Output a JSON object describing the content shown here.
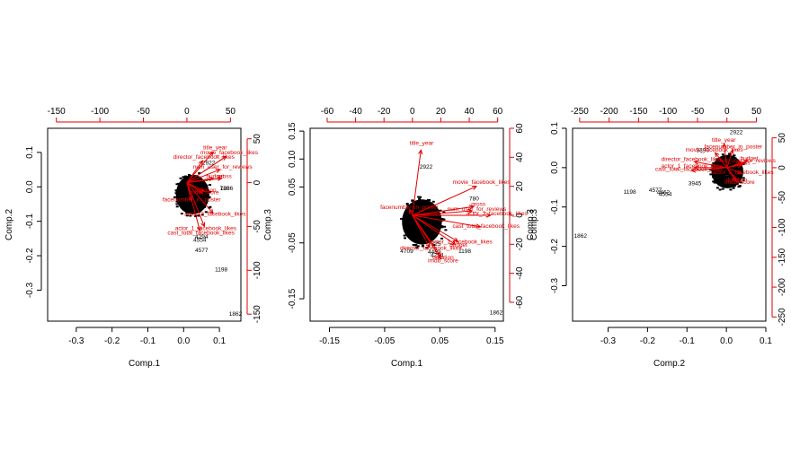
{
  "chart_data": [
    {
      "type": "scatter",
      "xlabel": "Comp.1",
      "ylabel": "Comp.2",
      "top_label": "",
      "right_label": "Comp.3",
      "xlim": [
        -0.38,
        0.16
      ],
      "ylim": [
        -0.39,
        0.17
      ],
      "loadlim_x": [
        -160,
        62
      ],
      "loadlim_y": [
        -158,
        62
      ],
      "x_ticks": [
        -0.3,
        -0.2,
        -0.1,
        0.0,
        0.1
      ],
      "y_ticks": [
        -0.3,
        -0.2,
        -0.1,
        0.0,
        0.1
      ],
      "top_ticks": [
        -150,
        -100,
        -50,
        0,
        50
      ],
      "right_ticks": [
        -150,
        -100,
        -50,
        0,
        50
      ],
      "cluster": {
        "x": [
          -0.03,
          0.08
        ],
        "y": [
          -0.09,
          0.045
        ]
      },
      "points": [
        {
          "label": "1862",
          "x": 0.145,
          "y": -0.375
        },
        {
          "label": "1198",
          "x": 0.105,
          "y": -0.245
        },
        {
          "label": "4577",
          "x": 0.05,
          "y": -0.19
        },
        {
          "label": "4554",
          "x": 0.045,
          "y": -0.16
        },
        {
          "label": "4294",
          "x": 0.05,
          "y": -0.15
        },
        {
          "label": "2922",
          "x": 0.07,
          "y": 0.065
        },
        {
          "label": "780",
          "x": 0.115,
          "y": -0.01
        },
        {
          "label": "1286",
          "x": 0.12,
          "y": -0.01
        }
      ],
      "loadings": [
        {
          "label": "title_year",
          "x": 30,
          "y": 35
        },
        {
          "label": "movie_facebook_likes",
          "x": 45,
          "y": 30
        },
        {
          "label": "num_user_for_reviews",
          "x": 38,
          "y": 15
        },
        {
          "label": "gross",
          "x": 40,
          "y": 5
        },
        {
          "label": "director_facebook_likes",
          "x": 18,
          "y": 25
        },
        {
          "label": "facenumber_in_poster",
          "x": 5,
          "y": -20
        },
        {
          "label": "cast_total_facebook_likes",
          "x": 15,
          "y": -55
        },
        {
          "label": "actor_1_facebook_likes",
          "x": 20,
          "y": -50
        },
        {
          "label": "actor_3_facebook_likes",
          "x": 30,
          "y": -35
        },
        {
          "label": "duration",
          "x": 20,
          "y": -10
        },
        {
          "label": "imdb_score",
          "x": 18,
          "y": -12
        },
        {
          "label": "budget",
          "x": 30,
          "y": 5
        }
      ]
    },
    {
      "type": "scatter",
      "xlabel": "Comp.1",
      "ylabel": "",
      "top_label": "",
      "right_label": "Comp.3",
      "xlim": [
        -0.185,
        0.165
      ],
      "ylim": [
        -0.19,
        0.155
      ],
      "loadlim_x": [
        -72,
        64
      ],
      "loadlim_y": [
        -73,
        60
      ],
      "x_ticks": [
        -0.15,
        -0.05,
        0.05,
        0.15
      ],
      "y_ticks": [
        -0.15,
        -0.05,
        0.05,
        0.1,
        0.15
      ],
      "y_tick_labels": [
        "-0.15",
        "-0.05",
        "0.05",
        "0.10",
        "0.15"
      ],
      "top_ticks": [
        -60,
        -40,
        -20,
        0,
        20,
        40,
        60
      ],
      "right_ticks": [
        -60,
        -40,
        -20,
        0,
        20,
        40,
        60
      ],
      "cluster": {
        "x": [
          -0.025,
          0.06
        ],
        "y": [
          -0.06,
          0.035
        ]
      },
      "points": [
        {
          "label": "2922",
          "x": 0.025,
          "y": 0.083
        },
        {
          "label": "1862",
          "x": 0.152,
          "y": -0.178
        },
        {
          "label": "1198",
          "x": 0.095,
          "y": -0.068
        },
        {
          "label": "780",
          "x": 0.112,
          "y": 0.026
        },
        {
          "label": "4462",
          "x": 0.04,
          "y": -0.07
        },
        {
          "label": "4294",
          "x": 0.045,
          "y": -0.075
        },
        {
          "label": "4709",
          "x": -0.01,
          "y": -0.068
        },
        {
          "label": "2725",
          "x": 0.04,
          "y": -0.055
        }
      ],
      "loadings": [
        {
          "label": "title_year",
          "x": 6,
          "y": 45
        },
        {
          "label": "movie_facebook_likes",
          "x": 45,
          "y": 20
        },
        {
          "label": "gross",
          "x": 43,
          "y": 6
        },
        {
          "label": "num_user_for_reviews",
          "x": 42,
          "y": 3
        },
        {
          "label": "cast_total_facebook_likes",
          "x": 48,
          "y": -8
        },
        {
          "label": "actor_1_facebook_likes",
          "x": 32,
          "y": -18
        },
        {
          "label": "budget",
          "x": 30,
          "y": -20
        },
        {
          "label": "duration",
          "x": 20,
          "y": -28
        },
        {
          "label": "imdb_score",
          "x": 20,
          "y": -30
        },
        {
          "label": "facenumber_in_poster",
          "x": -2,
          "y": 4
        },
        {
          "label": "director_facebook_likes",
          "x": 12,
          "y": -22
        },
        {
          "label": "actor_3_facebook_likes",
          "x": 55,
          "y": 0
        }
      ]
    },
    {
      "type": "scatter",
      "xlabel": "Comp.2",
      "ylabel": "Comp.3",
      "top_label": "",
      "right_label": "",
      "xlim": [
        -0.39,
        0.1
      ],
      "ylim": [
        -0.39,
        0.1
      ],
      "loadlim_x": [
        -262,
        66
      ],
      "loadlim_y": [
        -257,
        66
      ],
      "x_ticks": [
        -0.3,
        -0.2,
        -0.1,
        0.0,
        0.1
      ],
      "y_ticks": [
        -0.3,
        -0.2,
        -0.1,
        0.0,
        0.1
      ],
      "top_ticks": [
        -250,
        -200,
        -150,
        -100,
        -50,
        0,
        50
      ],
      "right_ticks": [
        -250,
        -200,
        -150,
        -100,
        -50,
        0,
        50
      ],
      "cluster": {
        "x": [
          -0.045,
          0.05
        ],
        "y": [
          -0.06,
          0.04
        ]
      },
      "points": [
        {
          "label": "2922",
          "x": 0.025,
          "y": 0.085
        },
        {
          "label": "1862",
          "x": -0.37,
          "y": -0.178
        },
        {
          "label": "1198",
          "x": -0.245,
          "y": -0.066
        },
        {
          "label": "4577",
          "x": -0.18,
          "y": -0.062
        },
        {
          "label": "4462",
          "x": -0.16,
          "y": -0.068
        },
        {
          "label": "4554",
          "x": -0.155,
          "y": -0.072
        },
        {
          "label": "3945",
          "x": -0.08,
          "y": -0.045
        },
        {
          "label": "3390",
          "x": -0.06,
          "y": 0.04
        }
      ],
      "loadings": [
        {
          "label": "title_year",
          "x": -5,
          "y": 40
        },
        {
          "label": "movie_facebook_likes",
          "x": -20,
          "y": 25
        },
        {
          "label": "director_facebook_likes",
          "x": -55,
          "y": 10
        },
        {
          "label": "cast_total_facebook_likes",
          "x": -60,
          "y": -5
        },
        {
          "label": "actor_1_facebook_likes",
          "x": -55,
          "y": 0
        },
        {
          "label": "gross",
          "x": 25,
          "y": 5
        },
        {
          "label": "num_user_for_reviews",
          "x": 30,
          "y": 8
        },
        {
          "label": "imdb_score",
          "x": 20,
          "y": -25
        },
        {
          "label": "duration",
          "x": 15,
          "y": -22
        },
        {
          "label": "budget",
          "x": 35,
          "y": 12
        },
        {
          "label": "actor_3_facebook_likes",
          "x": 25,
          "y": -10
        },
        {
          "label": "facenumber_in_poster",
          "x": 10,
          "y": 30
        }
      ]
    }
  ]
}
